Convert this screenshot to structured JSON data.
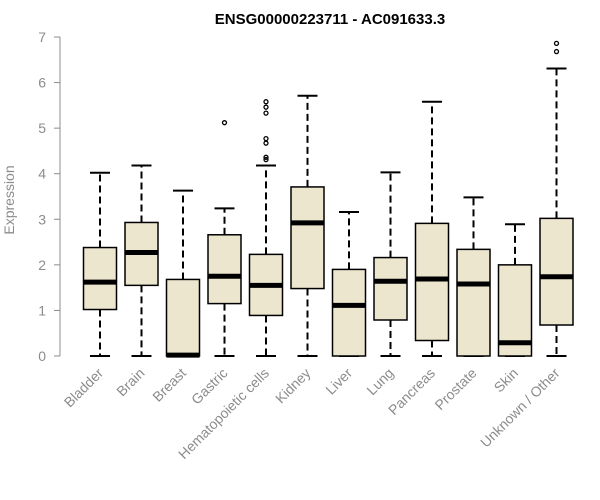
{
  "chart_data": {
    "type": "box",
    "title": "ENSG00000223711 - AC091633.3",
    "xlabel": "",
    "ylabel": "Expression",
    "ylim": [
      0,
      7
    ],
    "yticks": [
      "0",
      "1",
      "2",
      "3",
      "4",
      "5",
      "6",
      "7"
    ],
    "grid": false,
    "box_fill": "#ede6cf",
    "categories": [
      "Bladder",
      "Brain",
      "Breast",
      "Gastric",
      "Hematopoietic cells",
      "Kidney",
      "Liver",
      "Lung",
      "Pancreas",
      "Prostate",
      "Skin",
      "Unknown / Other"
    ],
    "boxes": [
      {
        "min": 0.0,
        "q1": 1.02,
        "median": 1.62,
        "q3": 2.38,
        "max": 4.02,
        "outliers": []
      },
      {
        "min": 0.0,
        "q1": 1.55,
        "median": 2.27,
        "q3": 2.93,
        "max": 4.18,
        "outliers": []
      },
      {
        "min": 0.0,
        "q1": 0.0,
        "median": 0.02,
        "q3": 1.68,
        "max": 3.63,
        "outliers": []
      },
      {
        "min": 0.0,
        "q1": 1.15,
        "median": 1.75,
        "q3": 2.66,
        "max": 3.24,
        "outliers": [
          5.12
        ]
      },
      {
        "min": 0.0,
        "q1": 0.89,
        "median": 1.55,
        "q3": 2.23,
        "max": 4.18,
        "outliers": [
          4.31,
          4.36,
          4.67,
          4.77,
          5.33,
          5.46,
          5.58
        ]
      },
      {
        "min": 0.0,
        "q1": 1.48,
        "median": 2.92,
        "q3": 3.71,
        "max": 5.71,
        "outliers": []
      },
      {
        "min": 0.0,
        "q1": 0.0,
        "median": 1.11,
        "q3": 1.9,
        "max": 3.16,
        "outliers": []
      },
      {
        "min": 0.0,
        "q1": 0.79,
        "median": 1.64,
        "q3": 2.16,
        "max": 4.03,
        "outliers": []
      },
      {
        "min": 0.0,
        "q1": 0.34,
        "median": 1.69,
        "q3": 2.91,
        "max": 5.58,
        "outliers": []
      },
      {
        "min": 0.0,
        "q1": 0.0,
        "median": 1.58,
        "q3": 2.34,
        "max": 3.48,
        "outliers": []
      },
      {
        "min": 0.0,
        "q1": 0.0,
        "median": 0.29,
        "q3": 2.0,
        "max": 2.89,
        "outliers": []
      },
      {
        "min": 0.0,
        "q1": 0.68,
        "median": 1.74,
        "q3": 3.02,
        "max": 6.31,
        "outliers": [
          6.68,
          6.86
        ]
      }
    ]
  }
}
